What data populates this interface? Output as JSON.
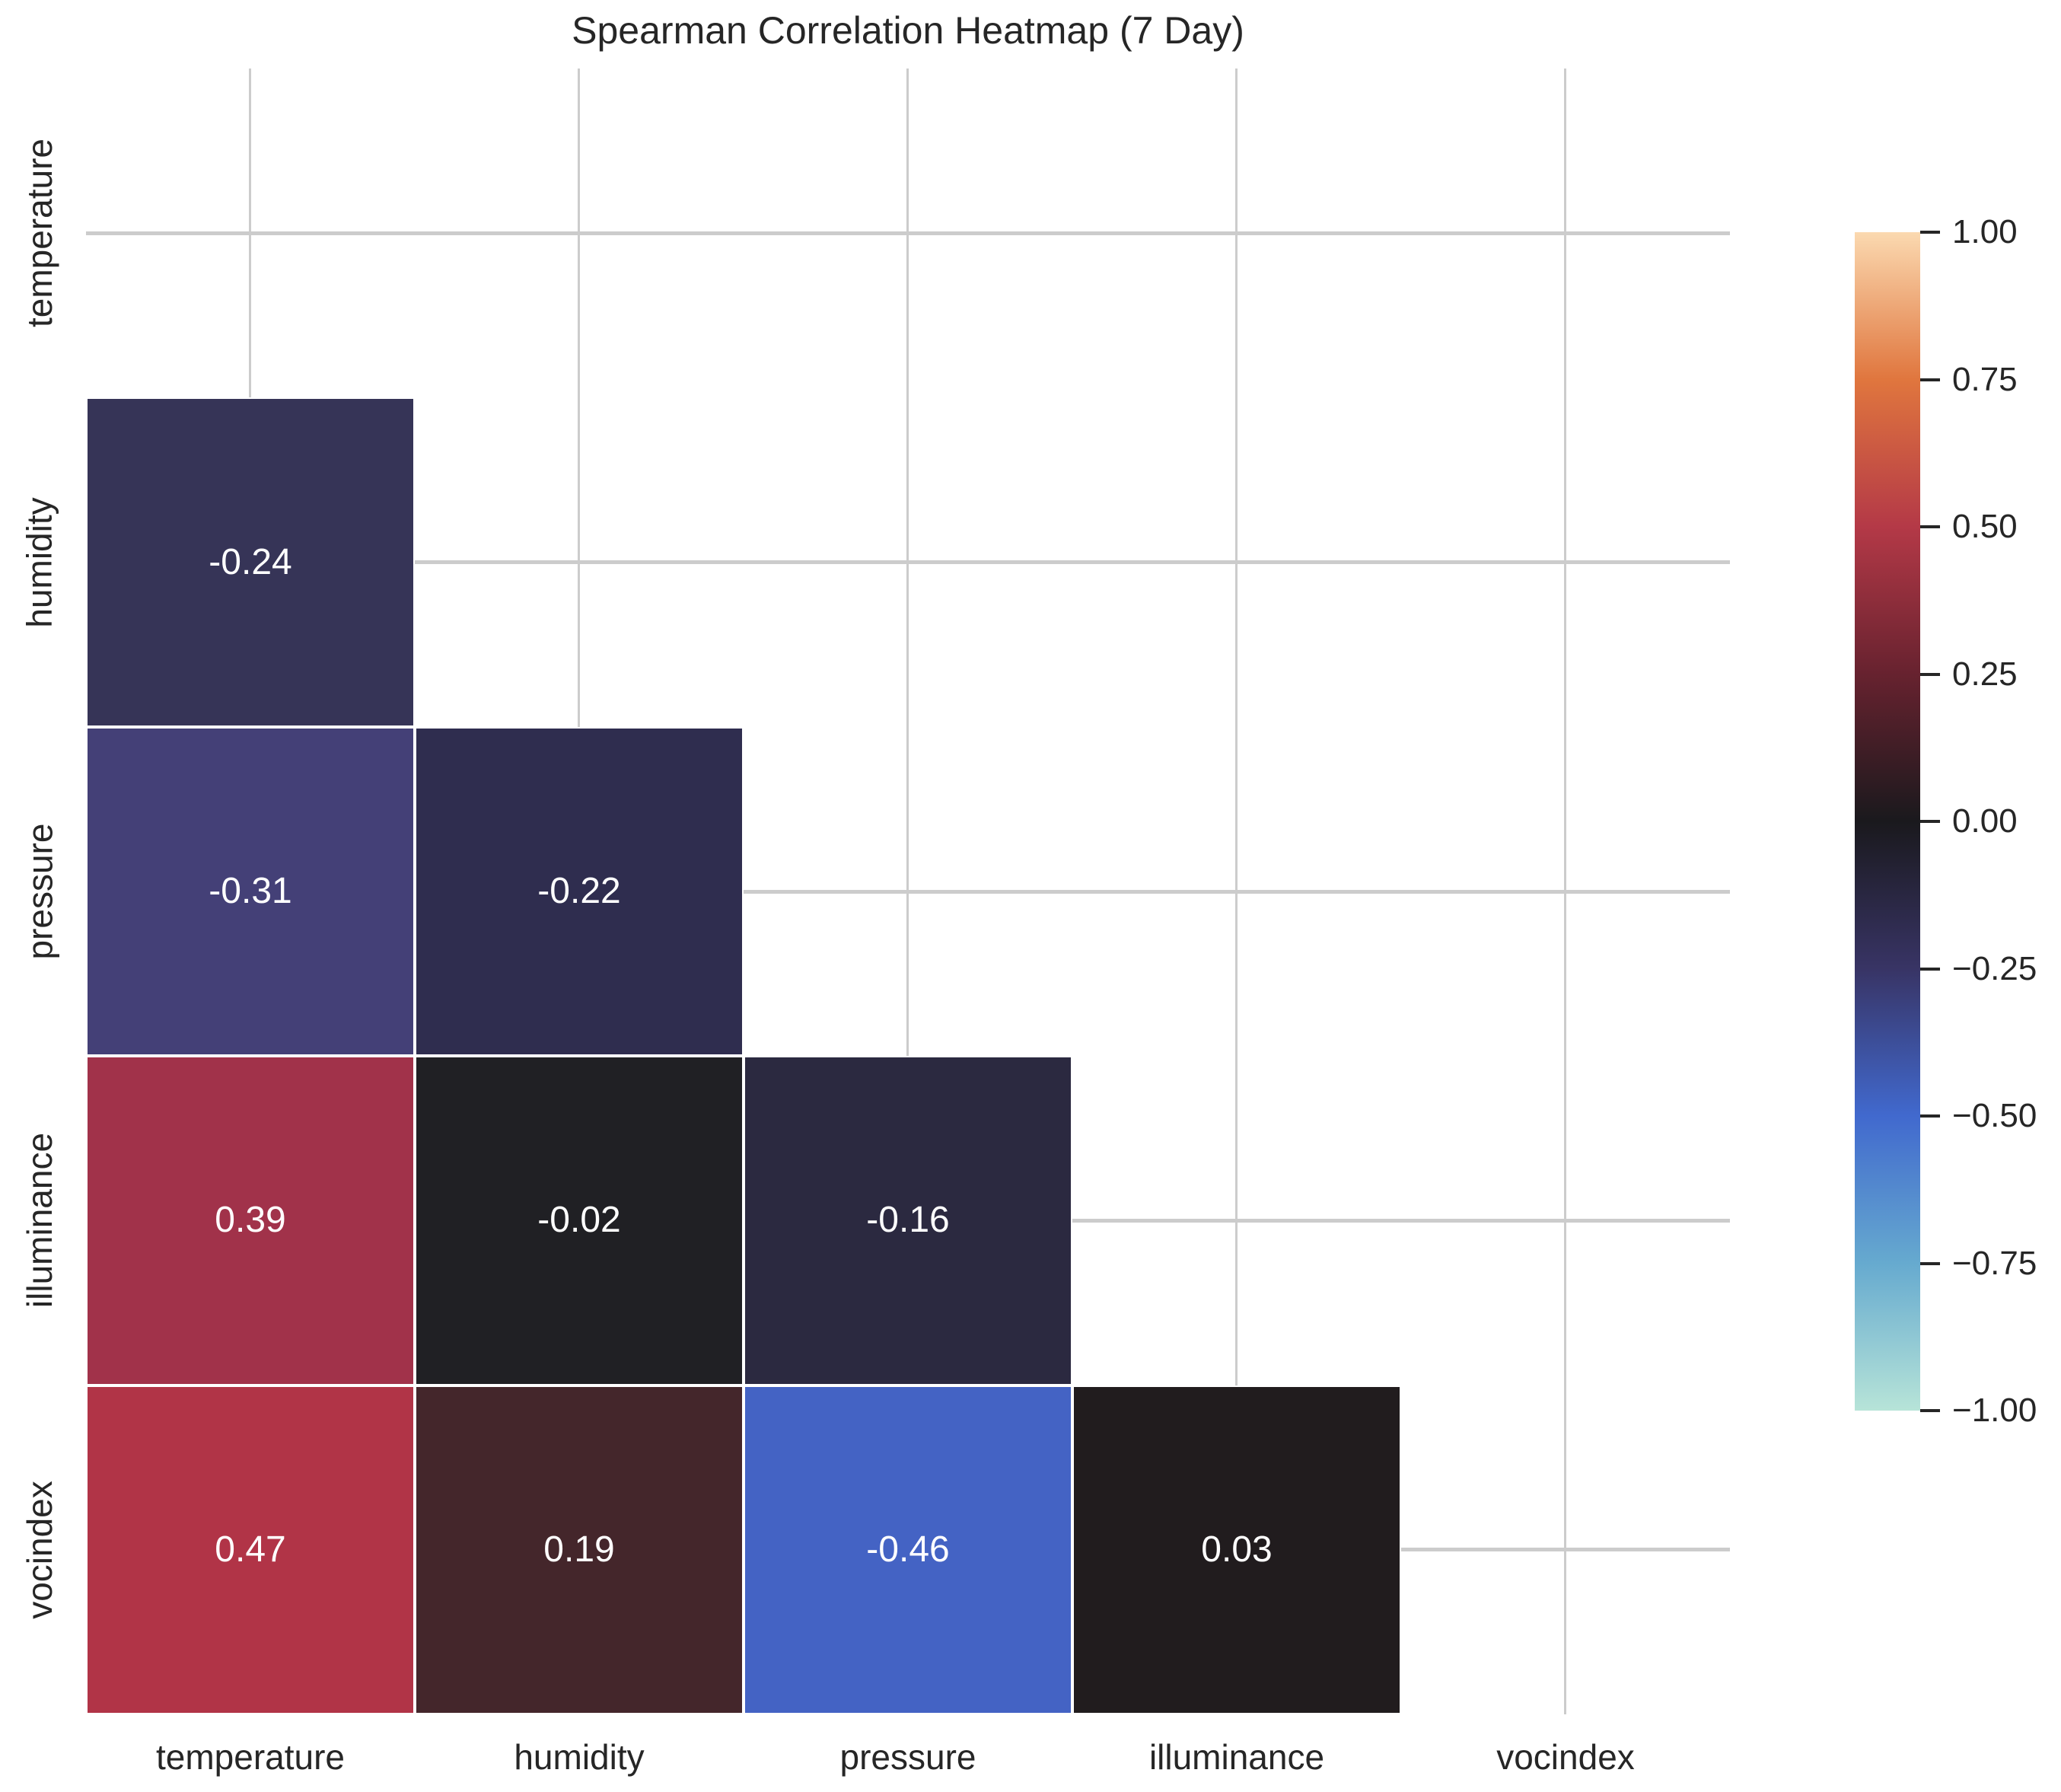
{
  "chart_data": {
    "type": "heatmap",
    "title": "Spearman Correlation Heatmap (7 Day)",
    "variables": [
      "temperature",
      "humidity",
      "pressure",
      "illuminance",
      "vocindex"
    ],
    "x_tick_labels": [
      "temperature",
      "humidity",
      "pressure",
      "illuminance",
      "vocindex"
    ],
    "y_tick_labels": [
      "temperature",
      "humidity",
      "pressure",
      "illuminance",
      "vocindex"
    ],
    "mask": "upper triangle and diagonal are masked (white)",
    "vmin": -1.0,
    "vmax": 1.0,
    "matrix": {
      "temperature": [
        null,
        null,
        null,
        null,
        null
      ],
      "humidity": [
        -0.24,
        null,
        null,
        null,
        null
      ],
      "pressure": [
        -0.31,
        -0.22,
        null,
        null,
        null
      ],
      "illuminance": [
        0.39,
        -0.02,
        -0.16,
        null,
        null
      ],
      "vocindex": [
        0.47,
        0.19,
        -0.46,
        0.03,
        null
      ]
    },
    "cells": [
      {
        "row": "humidity",
        "col": "temperature",
        "value": -0.24,
        "label": "-0.24",
        "color": "#363457"
      },
      {
        "row": "pressure",
        "col": "temperature",
        "value": -0.31,
        "label": "-0.31",
        "color": "#444077"
      },
      {
        "row": "pressure",
        "col": "humidity",
        "value": -0.22,
        "label": "-0.22",
        "color": "#2f2d4f"
      },
      {
        "row": "illuminance",
        "col": "temperature",
        "value": 0.39,
        "label": "0.39",
        "color": "#a1324a"
      },
      {
        "row": "illuminance",
        "col": "humidity",
        "value": -0.02,
        "label": "-0.02",
        "color": "#202024"
      },
      {
        "row": "illuminance",
        "col": "pressure",
        "value": -0.16,
        "label": "-0.16",
        "color": "#2b2940"
      },
      {
        "row": "vocindex",
        "col": "temperature",
        "value": 0.47,
        "label": "0.47",
        "color": "#b13447"
      },
      {
        "row": "vocindex",
        "col": "humidity",
        "value": 0.19,
        "label": "0.19",
        "color": "#44262b"
      },
      {
        "row": "vocindex",
        "col": "pressure",
        "value": -0.46,
        "label": "-0.46",
        "color": "#4463c4"
      },
      {
        "row": "vocindex",
        "col": "illuminance",
        "value": 0.03,
        "label": "0.03",
        "color": "#211c1e"
      }
    ],
    "colorbar": {
      "tick_labels": [
        "1.00",
        "0.75",
        "0.50",
        "0.25",
        "0.00",
        "−0.25",
        "−0.50",
        "−0.75",
        "−1.00"
      ],
      "tick_values": [
        1.0,
        0.75,
        0.5,
        0.25,
        0.0,
        -0.25,
        -0.5,
        -0.75,
        -1.0
      ],
      "gradient_top_to_bottom": [
        "#fbd9b0",
        "#e0763e",
        "#b43947",
        "#67222f",
        "#1a191d",
        "#383465",
        "#4169ce",
        "#66aacf",
        "#b7e4d8"
      ],
      "colormap": "icefire"
    },
    "annotation_text_color": "#ffffff",
    "grid_color": "#cccccc",
    "text_color": "#262626",
    "legend_position": "right colorbar",
    "grid": true
  }
}
